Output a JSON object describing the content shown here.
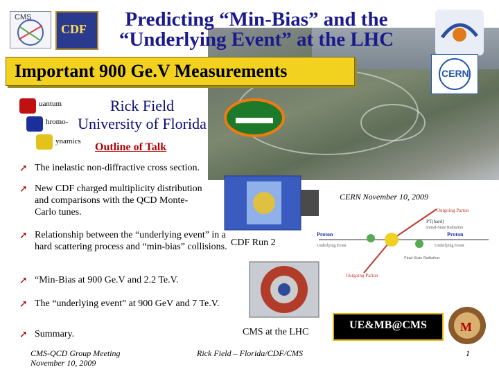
{
  "header": {
    "title_line1": "Predicting “Min-Bias” and the",
    "title_line2": "“Underlying Event” at the LHC"
  },
  "banner": {
    "text": "Important 900 Ge.V Measurements"
  },
  "author": {
    "name": "Rick Field",
    "affiliation": "University of Florida"
  },
  "qcd_logo": {
    "q": "uantum",
    "c": "hromo-",
    "d": "ynamics"
  },
  "outline": {
    "label": "Outline of Talk"
  },
  "bullets": [
    {
      "text": "The inelastic non-diffractive cross section."
    },
    {
      "text": "New CDF charged multiplicity distribution and comparisons with the QCD Monte-Carlo tunes."
    },
    {
      "text": "Relationship between the “underlying event” in a hard scattering process and “min-bias” collisions."
    },
    {
      "text": "“Min-Bias at 900 Ge.V and 2.2 Te.V."
    },
    {
      "text": "The “underlying event” at 900 GeV and 7 Te.V."
    },
    {
      "text": "Summary."
    }
  ],
  "labels": {
    "cdf_run2": "CDF Run 2",
    "cms_lhc": "CMS at the LHC",
    "cern_date": "CERN November 10, 2009",
    "ue_mb": "UE&MB@CMS",
    "cms_logo": "CMS",
    "cdf_logo": "CDF",
    "cern_logo": "CERN"
  },
  "diagram": {
    "proton_left": "Proton",
    "proton_right": "Proton",
    "outgoing_top": "Outgoing Parton",
    "outgoing_bottom": "Outgoing Parton",
    "pt_hard": "PT(hard)",
    "underlying_left": "Underlying Event",
    "underlying_right": "Underlying Event",
    "initial_state": "Initial-State Radiation",
    "final_state": "Final-State Radiation"
  },
  "footer": {
    "left_line1": "CMS-QCD Group Meeting",
    "left_line2": "November 10, 2009",
    "center": "Rick Field – Florida/CDF/CMS",
    "page": "1"
  },
  "colors": {
    "banner": "#f3d21f",
    "title": "#1a1a8c",
    "accent": "#b00000"
  }
}
